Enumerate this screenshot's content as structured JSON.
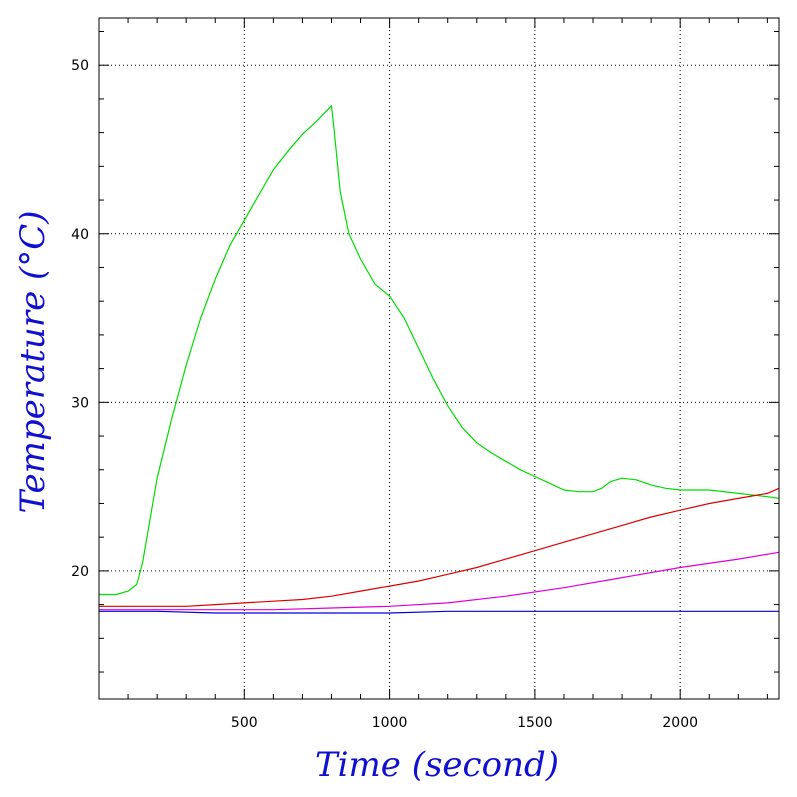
{
  "chart_data": {
    "type": "line",
    "title": "",
    "xlabel": "Time (second)",
    "ylabel": "Temperature (°C)",
    "xlim": [
      0,
      2340
    ],
    "ylim": [
      12.4,
      52.8
    ],
    "xticks": [
      500,
      1000,
      1500,
      2000
    ],
    "xtick_labels": [
      "500",
      "1000",
      "1500",
      "2000"
    ],
    "yticks": [
      20,
      30,
      40,
      50
    ],
    "ytick_labels": [
      "20",
      "30",
      "40",
      "50"
    ],
    "grid": true,
    "legend": "none",
    "label_color": "#1010d0",
    "series": [
      {
        "color": "#00dd00",
        "x": [
          0,
          60,
          100,
          130,
          150,
          170,
          200,
          250,
          300,
          350,
          400,
          450,
          500,
          550,
          600,
          650,
          700,
          750,
          800,
          810,
          830,
          860,
          900,
          950,
          1000,
          1050,
          1100,
          1150,
          1200,
          1250,
          1300,
          1350,
          1400,
          1450,
          1500,
          1550,
          1600,
          1650,
          1700,
          1730,
          1760,
          1800,
          1850,
          1900,
          1950,
          2000,
          2100,
          2200,
          2300,
          2340
        ],
        "y": [
          18.6,
          18.6,
          18.8,
          19.2,
          20.5,
          22.5,
          25.5,
          29.0,
          32.2,
          35.0,
          37.3,
          39.3,
          40.8,
          42.3,
          43.8,
          44.9,
          45.9,
          46.7,
          47.6,
          46.0,
          42.5,
          40.0,
          38.5,
          37.0,
          36.3,
          35.0,
          33.2,
          31.4,
          29.8,
          28.5,
          27.6,
          27.0,
          26.5,
          26.0,
          25.6,
          25.2,
          24.8,
          24.7,
          24.7,
          24.9,
          25.3,
          25.5,
          25.4,
          25.1,
          24.9,
          24.8,
          24.8,
          24.6,
          24.4,
          24.3
        ]
      },
      {
        "color": "#dd0000",
        "x": [
          0,
          100,
          200,
          300,
          400,
          500,
          600,
          700,
          800,
          900,
          1000,
          1100,
          1200,
          1300,
          1400,
          1500,
          1600,
          1700,
          1800,
          1900,
          2000,
          2100,
          2200,
          2300,
          2340
        ],
        "y": [
          17.9,
          17.9,
          17.9,
          17.9,
          18.0,
          18.1,
          18.2,
          18.3,
          18.5,
          18.8,
          19.1,
          19.4,
          19.8,
          20.2,
          20.7,
          21.2,
          21.7,
          22.2,
          22.7,
          23.2,
          23.6,
          24.0,
          24.3,
          24.6,
          24.9
        ]
      },
      {
        "color": "#dd00dd",
        "x": [
          0,
          200,
          400,
          600,
          800,
          1000,
          1200,
          1400,
          1600,
          1800,
          2000,
          2200,
          2340
        ],
        "y": [
          17.7,
          17.7,
          17.7,
          17.7,
          17.8,
          17.9,
          18.1,
          18.5,
          19.0,
          19.6,
          20.2,
          20.7,
          21.1
        ]
      },
      {
        "color": "#0000dd",
        "x": [
          0,
          200,
          400,
          600,
          800,
          1000,
          1200,
          1400,
          1600,
          1800,
          2000,
          2200,
          2340
        ],
        "y": [
          17.6,
          17.6,
          17.5,
          17.5,
          17.5,
          17.5,
          17.6,
          17.6,
          17.6,
          17.6,
          17.6,
          17.6,
          17.6
        ]
      }
    ]
  }
}
